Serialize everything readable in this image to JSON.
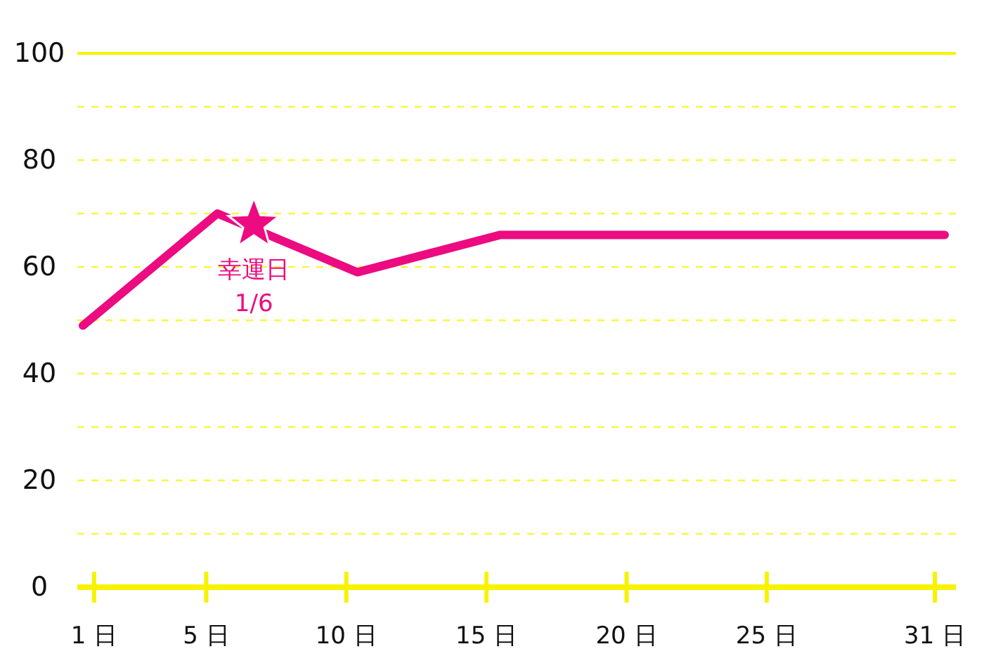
{
  "chart_data": {
    "type": "line",
    "x": [
      0.6,
      5.4,
      10.4,
      15.5,
      31.35
    ],
    "series": [
      {
        "color": "#ec0b80",
        "values": [
          49,
          70,
          59,
          66,
          66
        ]
      },
      {
        "type": "scatter",
        "color": "#ec0b80",
        "marker": "star",
        "x": [
          6.7
        ],
        "values": [
          68
        ]
      }
    ],
    "xlim": [
      0.4,
      31.75
    ],
    "xticks": [
      {
        "value": 1,
        "label": "1 日"
      },
      {
        "value": 5,
        "label": "5 日"
      },
      {
        "value": 10,
        "label": "10 日"
      },
      {
        "value": 15,
        "label": "15 日"
      },
      {
        "value": 20,
        "label": "20 日"
      },
      {
        "value": 25,
        "label": "25 日"
      },
      {
        "value": 31,
        "label": "31 日"
      }
    ],
    "ylim": [
      0,
      100
    ],
    "yticks": [
      0,
      {
        "value": 10,
        "label": null
      },
      20,
      {
        "value": 30,
        "label": null
      },
      40,
      {
        "value": 50,
        "label": null
      },
      60,
      {
        "value": 70,
        "label": null
      },
      80,
      {
        "value": 90,
        "label": null
      },
      100
    ],
    "grid": "y",
    "annotations": [
      {
        "text": "幸運日\n1/6",
        "x": 6.7,
        "y": 68
      }
    ]
  }
}
